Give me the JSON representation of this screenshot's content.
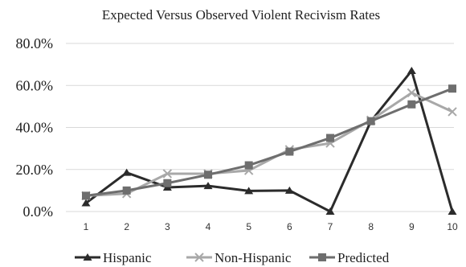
{
  "chart_data": {
    "type": "line",
    "title": "Expected Versus Observed Violent Recivism Rates",
    "xlabel": "",
    "ylabel": "",
    "categories": [
      "1",
      "2",
      "3",
      "4",
      "5",
      "6",
      "7",
      "8",
      "9",
      "10"
    ],
    "yticks": [
      "0.0%",
      "20.0%",
      "40.0%",
      "60.0%",
      "80.0%"
    ],
    "ylim": [
      0,
      80
    ],
    "grid": "horizontal",
    "legend_position": "bottom",
    "series": [
      {
        "name": "Hispanic",
        "color": "#2b2b2b",
        "marker": "triangle",
        "values": [
          4.0,
          18.5,
          11.5,
          12.2,
          9.8,
          10.0,
          0.0,
          43.0,
          67.0,
          0.0
        ]
      },
      {
        "name": "Non-Hispanic",
        "color": "#a8a8a8",
        "marker": "x",
        "values": [
          7.5,
          8.5,
          18.0,
          18.0,
          19.5,
          29.5,
          32.5,
          43.5,
          56.5,
          47.5
        ]
      },
      {
        "name": "Predicted",
        "color": "#6e6e6e",
        "marker": "square",
        "values": [
          7.5,
          10.0,
          13.5,
          17.5,
          22.0,
          28.5,
          35.0,
          43.0,
          51.0,
          58.5
        ]
      }
    ]
  }
}
